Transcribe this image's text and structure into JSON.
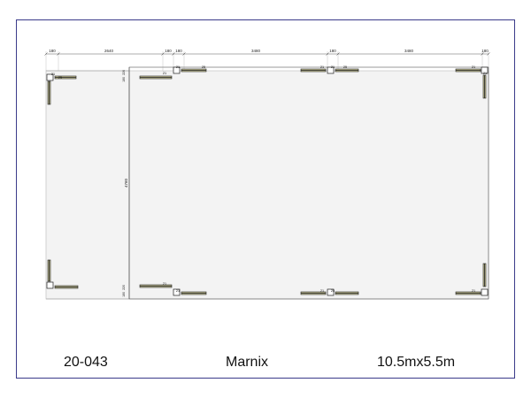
{
  "drawing": {
    "dimensions": {
      "top": [
        "180",
        "2640",
        "180",
        "180",
        "3480",
        "180",
        "3480",
        "180"
      ],
      "vertical": [
        "4760"
      ],
      "left_small": [
        "220",
        "180",
        "220",
        "180"
      ]
    },
    "post_labels": [
      "21",
      "25",
      "21",
      "21",
      "25",
      "21",
      "21",
      "25",
      "21",
      "21",
      "21",
      "21",
      "25",
      "21",
      "21"
    ],
    "colors": {
      "frame": "#3a3a8a",
      "floor": "#f3f3f3",
      "outline": "#555555",
      "beam": "#1e1e1e",
      "beam_fill": "#c9c79a"
    }
  },
  "title_block": {
    "code": "20-043",
    "name": "Marnix",
    "size": "10.5mx5.5m"
  }
}
